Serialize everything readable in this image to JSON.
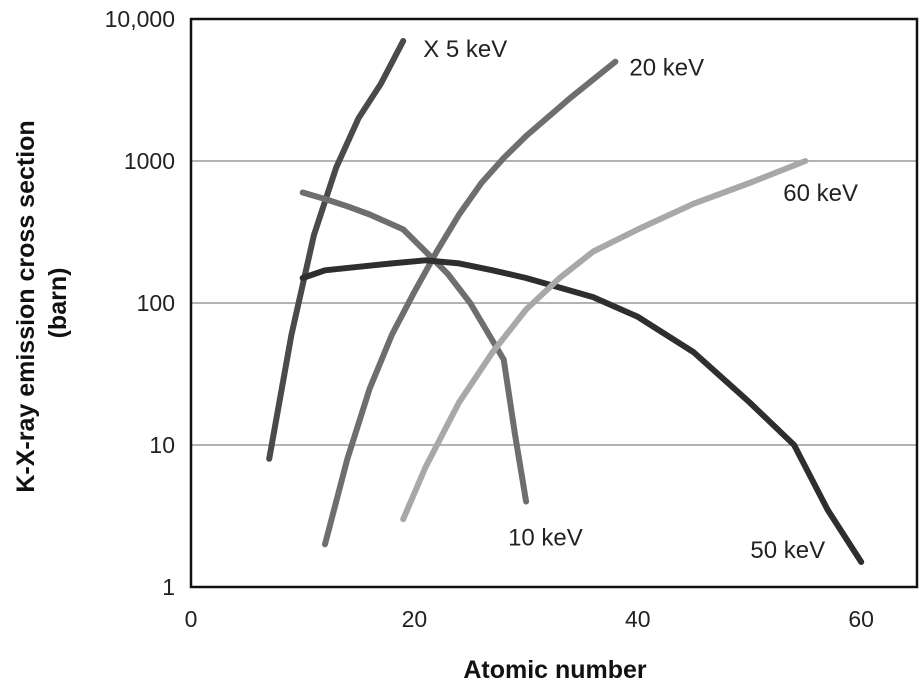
{
  "chart_data": {
    "type": "line",
    "xlabel": "Atomic number",
    "ylabel": "K-X-ray emission cross section (barn)",
    "ylabel_lines": [
      "K-X-ray emission cross section",
      "(barn)"
    ],
    "xlim": [
      0,
      65
    ],
    "ylim": [
      1,
      10000
    ],
    "yscale": "log",
    "x_ticks": [
      0,
      20,
      40,
      60
    ],
    "x_tick_labels": [
      "0",
      "20",
      "40",
      "60"
    ],
    "y_ticks": [
      1,
      10,
      100,
      1000,
      10000
    ],
    "y_tick_labels": [
      "1",
      "10",
      "100",
      "1000",
      "10,000"
    ],
    "grid": "horizontal",
    "legend": "none",
    "series": [
      {
        "name": "X 5 keV",
        "color": "#4a4a4a",
        "x": [
          7,
          9,
          11,
          13,
          15,
          17,
          19
        ],
        "y": [
          8,
          60,
          300,
          900,
          2000,
          3500,
          7000
        ]
      },
      {
        "name": "10 keV",
        "color": "#6e6e6e",
        "x": [
          10,
          12,
          14,
          16,
          19,
          21,
          23,
          25,
          28,
          29,
          30
        ],
        "y": [
          600,
          540,
          480,
          420,
          330,
          230,
          160,
          100,
          40,
          12,
          4
        ]
      },
      {
        "name": "20 keV",
        "color": "#6e6e6e",
        "x": [
          12,
          14,
          16,
          18,
          20,
          22,
          24,
          26,
          28,
          30,
          34,
          38
        ],
        "y": [
          2,
          8,
          25,
          60,
          120,
          230,
          420,
          700,
          1050,
          1500,
          2800,
          5000
        ]
      },
      {
        "name": "50 keV",
        "color": "#2e2e2e",
        "x": [
          10,
          12,
          15,
          18,
          21,
          24,
          27,
          30,
          36,
          40,
          45,
          50,
          54,
          57,
          60
        ],
        "y": [
          150,
          170,
          180,
          190,
          200,
          190,
          170,
          150,
          110,
          80,
          45,
          20,
          10,
          3.5,
          1.5
        ]
      },
      {
        "name": "60 keV",
        "color": "#a8a8a8",
        "x": [
          19,
          21,
          24,
          27,
          30,
          33,
          36,
          40,
          45,
          50,
          55
        ],
        "y": [
          3,
          7,
          20,
          45,
          90,
          150,
          230,
          330,
          500,
          700,
          1000
        ]
      }
    ]
  }
}
